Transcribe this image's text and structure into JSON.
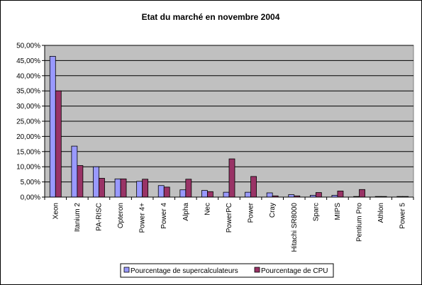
{
  "chart_data": {
    "type": "bar",
    "title": "Etat du marché en novembre 2004",
    "categories": [
      "Xeon",
      "Itanium 2",
      "PA-RISC",
      "Opteron",
      "Power 4+",
      "Power 4",
      "Alpha",
      "Nec",
      "PowerPC",
      "Power",
      "Cray",
      "Hitachi SR8000",
      "Sparc",
      "MIPS",
      "Pentium Pro",
      "Athlon",
      "Power 5"
    ],
    "series": [
      {
        "name": "Pourcentage de supercalculateurs",
        "color": "#9999ff",
        "values": [
          46.4,
          16.8,
          10.0,
          6.0,
          5.2,
          3.8,
          2.4,
          2.2,
          1.6,
          1.6,
          1.4,
          0.8,
          0.6,
          0.6,
          0.2,
          0.2,
          0.2
        ]
      },
      {
        "name": "Pourcentage de CPU",
        "color": "#993366",
        "values": [
          35.0,
          10.4,
          6.2,
          6.0,
          5.9,
          3.3,
          5.9,
          1.8,
          12.6,
          6.8,
          0.4,
          0.4,
          1.5,
          2.0,
          2.5,
          0.2,
          0.2
        ]
      }
    ],
    "yticks": [
      "0,00%",
      "5,00%",
      "10,00%",
      "15,00%",
      "20,00%",
      "25,00%",
      "30,00%",
      "35,00%",
      "40,00%",
      "45,00%",
      "50,00%"
    ],
    "ylim": [
      0,
      50
    ],
    "grid": true,
    "plot_background": "#c0c0c0",
    "legend_position": "bottom"
  }
}
